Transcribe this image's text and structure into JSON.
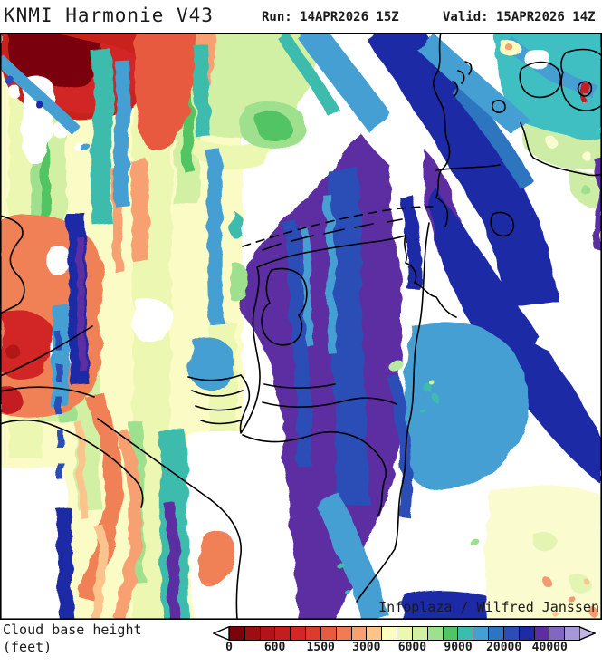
{
  "header": {
    "title": "KNMI Harmonie V43",
    "run_label": "Run: 14APR2026 15Z",
    "valid_label": "Valid: 15APR2026 14Z"
  },
  "footer": {
    "param_line1": "Cloud base height",
    "param_line2": "(feet)",
    "credit": "Infoplaza / Wilfred Janssen"
  },
  "legend": {
    "unit": "feet",
    "tick_labels": [
      "0",
      "600",
      "1500",
      "3000",
      "6000",
      "9000",
      "20000",
      "40000"
    ],
    "tick_cell_boundaries": [
      0,
      3,
      6,
      9,
      12,
      15,
      18,
      21
    ],
    "cell_count": 23,
    "cell_colors": [
      "#7a040a",
      "#9e0d12",
      "#b31419",
      "#c31d20",
      "#d22727",
      "#dc3b2d",
      "#e85a41",
      "#f07b54",
      "#f7a172",
      "#fac48c",
      "#fdfdc2",
      "#ecf8b2",
      "#d2f0a4",
      "#9fe08f",
      "#52c463",
      "#3cbcae",
      "#459fd3",
      "#2e74c0",
      "#2c4db6",
      "#1d2ba6",
      "#5c2ea2",
      "#8266c4",
      "#a697d8"
    ],
    "arrow_left_color": "#ffffff",
    "arrow_right_color": "#c2b6e8"
  },
  "map": {
    "region": "Netherlands / North Sea / Denmark",
    "low_cloud_color": "#c31d20",
    "mid_cloud_color": "#52c463",
    "high_cloud_color": "#5c2ea2",
    "no_cloud_color": "#ffffff"
  }
}
